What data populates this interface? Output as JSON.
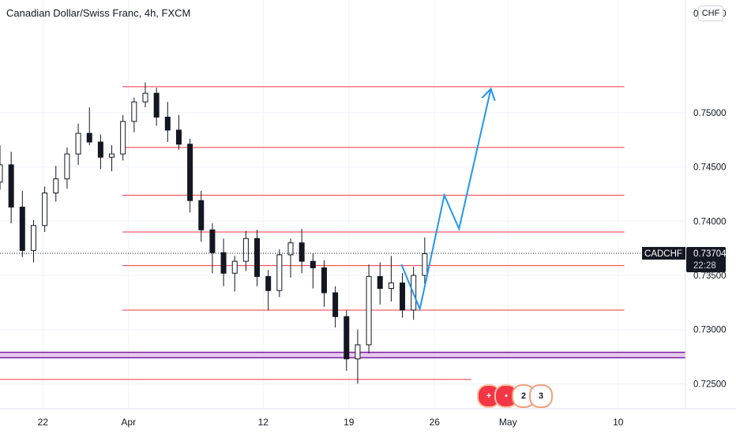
{
  "header": {
    "title": "Canadian Dollar/Swiss Franc, 4h, FXCM",
    "currency_button": "CHF"
  },
  "chart_data": {
    "type": "candlestick",
    "symbol": "CADCHF",
    "ylim": [
      0.7227,
      0.7604
    ],
    "y_ticks": [
      0.725,
      0.73,
      0.735,
      0.74,
      0.745,
      0.75
    ],
    "y_tick_labels": [
      "0.72500",
      "0.73000",
      "0.73500",
      "0.74000",
      "0.74500",
      "0.75000"
    ],
    "y_partial_top_label": "0.75500",
    "x_labels": [
      {
        "label": "22",
        "x": 0
      },
      {
        "label": "Apr",
        "x": 7
      },
      {
        "label": "12",
        "x": 18
      },
      {
        "label": "19",
        "x": 25
      },
      {
        "label": "26",
        "x": 32
      },
      {
        "label": "May",
        "x": 38
      },
      {
        "label": "10",
        "x": 47
      }
    ],
    "xlim": [
      -3.5,
      52.5
    ],
    "last_price": {
      "symbol_label": "CADCHF",
      "value": "0.73704",
      "countdown": "22:28",
      "y": 0.73704
    },
    "horizontal_levels": [
      {
        "y": 0.7524,
        "x_start": 6.5
      },
      {
        "y": 0.7468,
        "x_start": 6.5
      },
      {
        "y": 0.7424,
        "x_start": 6.5
      },
      {
        "y": 0.739,
        "x_start": 6.5
      },
      {
        "y": 0.7359,
        "x_start": 6.5
      },
      {
        "y": 0.7318,
        "x_start": 6.5
      },
      {
        "y": 0.7254,
        "x_start": -3.5,
        "x_end": 35.0
      }
    ],
    "support_zone": {
      "y_low": 0.7274,
      "y_high": 0.7279
    },
    "projection_path": [
      [
        29.3,
        0.736
      ],
      [
        30.8,
        0.7319
      ],
      [
        31.3,
        0.7345
      ],
      [
        32.8,
        0.7424
      ],
      [
        34.0,
        0.7393
      ],
      [
        36.6,
        0.7522
      ]
    ],
    "candles": [
      [
        0.7436,
        0.747,
        0.7429,
        0.7452
      ],
      [
        0.7452,
        0.7464,
        0.7398,
        0.7413
      ],
      [
        0.7413,
        0.7428,
        0.7367,
        0.7373
      ],
      [
        0.7373,
        0.7401,
        0.7362,
        0.7396
      ],
      [
        0.7396,
        0.7432,
        0.739,
        0.7426
      ],
      [
        0.7426,
        0.7451,
        0.7418,
        0.7439
      ],
      [
        0.7439,
        0.7468,
        0.743,
        0.7462
      ],
      [
        0.7462,
        0.749,
        0.7452,
        0.7481
      ],
      [
        0.7481,
        0.7505,
        0.747,
        0.7473
      ],
      [
        0.7473,
        0.748,
        0.7448,
        0.7459
      ],
      [
        0.7459,
        0.747,
        0.7446,
        0.7462
      ],
      [
        0.7462,
        0.7498,
        0.7456,
        0.7492
      ],
      [
        0.7492,
        0.7514,
        0.7482,
        0.751
      ],
      [
        0.751,
        0.7528,
        0.7505,
        0.7518
      ],
      [
        0.7518,
        0.7523,
        0.7488,
        0.7496
      ],
      [
        0.7496,
        0.751,
        0.7473,
        0.7484
      ],
      [
        0.7484,
        0.7498,
        0.7466,
        0.7471
      ],
      [
        0.7471,
        0.7476,
        0.7408,
        0.7419
      ],
      [
        0.7419,
        0.7428,
        0.7381,
        0.7392
      ],
      [
        0.7392,
        0.7398,
        0.7352,
        0.7371
      ],
      [
        0.7371,
        0.7384,
        0.734,
        0.7352
      ],
      [
        0.7352,
        0.7368,
        0.7335,
        0.7363
      ],
      [
        0.7363,
        0.7391,
        0.7354,
        0.7384
      ],
      [
        0.7384,
        0.7392,
        0.734,
        0.7349
      ],
      [
        0.7349,
        0.7355,
        0.7318,
        0.7336
      ],
      [
        0.7336,
        0.7374,
        0.733,
        0.7369
      ],
      [
        0.7369,
        0.7384,
        0.7348,
        0.738
      ],
      [
        0.738,
        0.7393,
        0.7352,
        0.7363
      ],
      [
        0.7363,
        0.737,
        0.7338,
        0.7357
      ],
      [
        0.7357,
        0.7364,
        0.7321,
        0.7334
      ],
      [
        0.7334,
        0.734,
        0.7302,
        0.7312
      ],
      [
        0.7312,
        0.7318,
        0.7262,
        0.7273
      ],
      [
        0.7273,
        0.73,
        0.725,
        0.7286
      ],
      [
        0.7286,
        0.736,
        0.7278,
        0.7349
      ],
      [
        0.7349,
        0.7362,
        0.7323,
        0.7338
      ],
      [
        0.7338,
        0.7368,
        0.7326,
        0.7343
      ],
      [
        0.7343,
        0.7352,
        0.7311,
        0.7318
      ],
      [
        0.7318,
        0.7358,
        0.7309,
        0.735
      ],
      [
        0.735,
        0.7385,
        0.7342,
        0.737
      ]
    ]
  },
  "events": [
    {
      "icon": "plus-flag-icon",
      "label": ""
    },
    {
      "icon": "flag-icon",
      "label": ""
    },
    {
      "icon": "event-count-icon",
      "label": "2"
    },
    {
      "icon": "event-count-icon",
      "label": "3"
    }
  ]
}
